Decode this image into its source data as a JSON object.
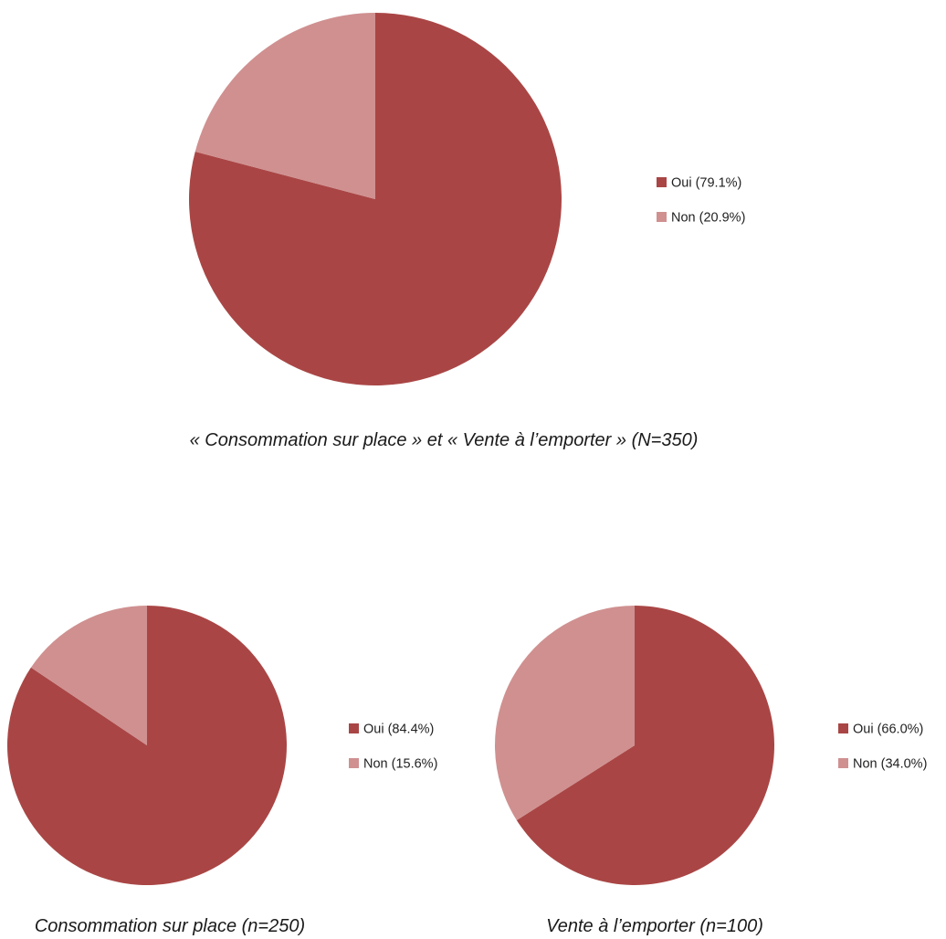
{
  "colors": {
    "oui": "#a94645",
    "non": "#d09090"
  },
  "chart_data": [
    {
      "type": "pie",
      "caption": "« Consommation sur place » et « Vente à l’emporter »  (N=350)",
      "slices": [
        {
          "label": "Oui (79.1%)",
          "value": 79.1,
          "color": "#a94645"
        },
        {
          "label": "Non (20.9%)",
          "value": 20.9,
          "color": "#d09090"
        }
      ],
      "legend_position": "right"
    },
    {
      "type": "pie",
      "caption": "Consommation sur place (n=250)",
      "slices": [
        {
          "label": "Oui (84.4%)",
          "value": 84.4,
          "color": "#a94645"
        },
        {
          "label": "Non (15.6%)",
          "value": 15.6,
          "color": "#d09090"
        }
      ],
      "legend_position": "right"
    },
    {
      "type": "pie",
      "caption": "Vente à l’emporter (n=100)",
      "slices": [
        {
          "label": "Oui (66.0%)",
          "value": 66.0,
          "color": "#a94645"
        },
        {
          "label": "Non (34.0%)",
          "value": 34.0,
          "color": "#d09090"
        }
      ],
      "legend_position": "right"
    }
  ]
}
